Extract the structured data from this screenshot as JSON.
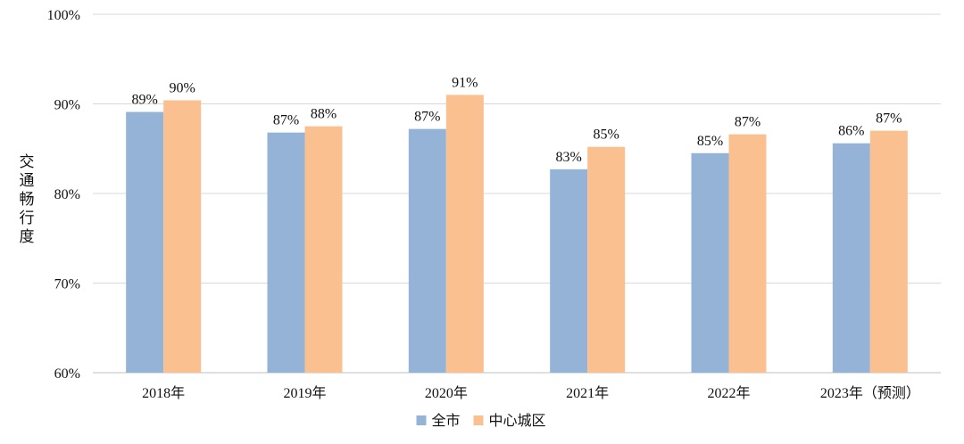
{
  "chart_data": {
    "type": "bar",
    "title": "",
    "xlabel": "",
    "ylabel": "交通畅行度",
    "categories": [
      "2018年",
      "2019年",
      "2020年",
      "2021年",
      "2022年",
      "2023年（预测）"
    ],
    "series": [
      {
        "name": "全市",
        "color": "#95B3D7",
        "values": [
          89.1,
          86.8,
          87.2,
          82.7,
          84.5,
          85.6
        ],
        "labels": [
          "89%",
          "87%",
          "87%",
          "83%",
          "85%",
          "86%"
        ]
      },
      {
        "name": "中心城区",
        "color": "#FAC090",
        "values": [
          90.4,
          87.5,
          91.0,
          85.2,
          86.6,
          87.0
        ],
        "labels": [
          "90%",
          "88%",
          "91%",
          "85%",
          "87%",
          "87%"
        ]
      }
    ],
    "ylim": [
      60,
      100
    ],
    "yticks": [
      60,
      70,
      80,
      90,
      100
    ],
    "ytick_labels": [
      "60%",
      "70%",
      "80%",
      "90%",
      "100%"
    ],
    "grid": true,
    "legend_position": "bottom-center"
  }
}
